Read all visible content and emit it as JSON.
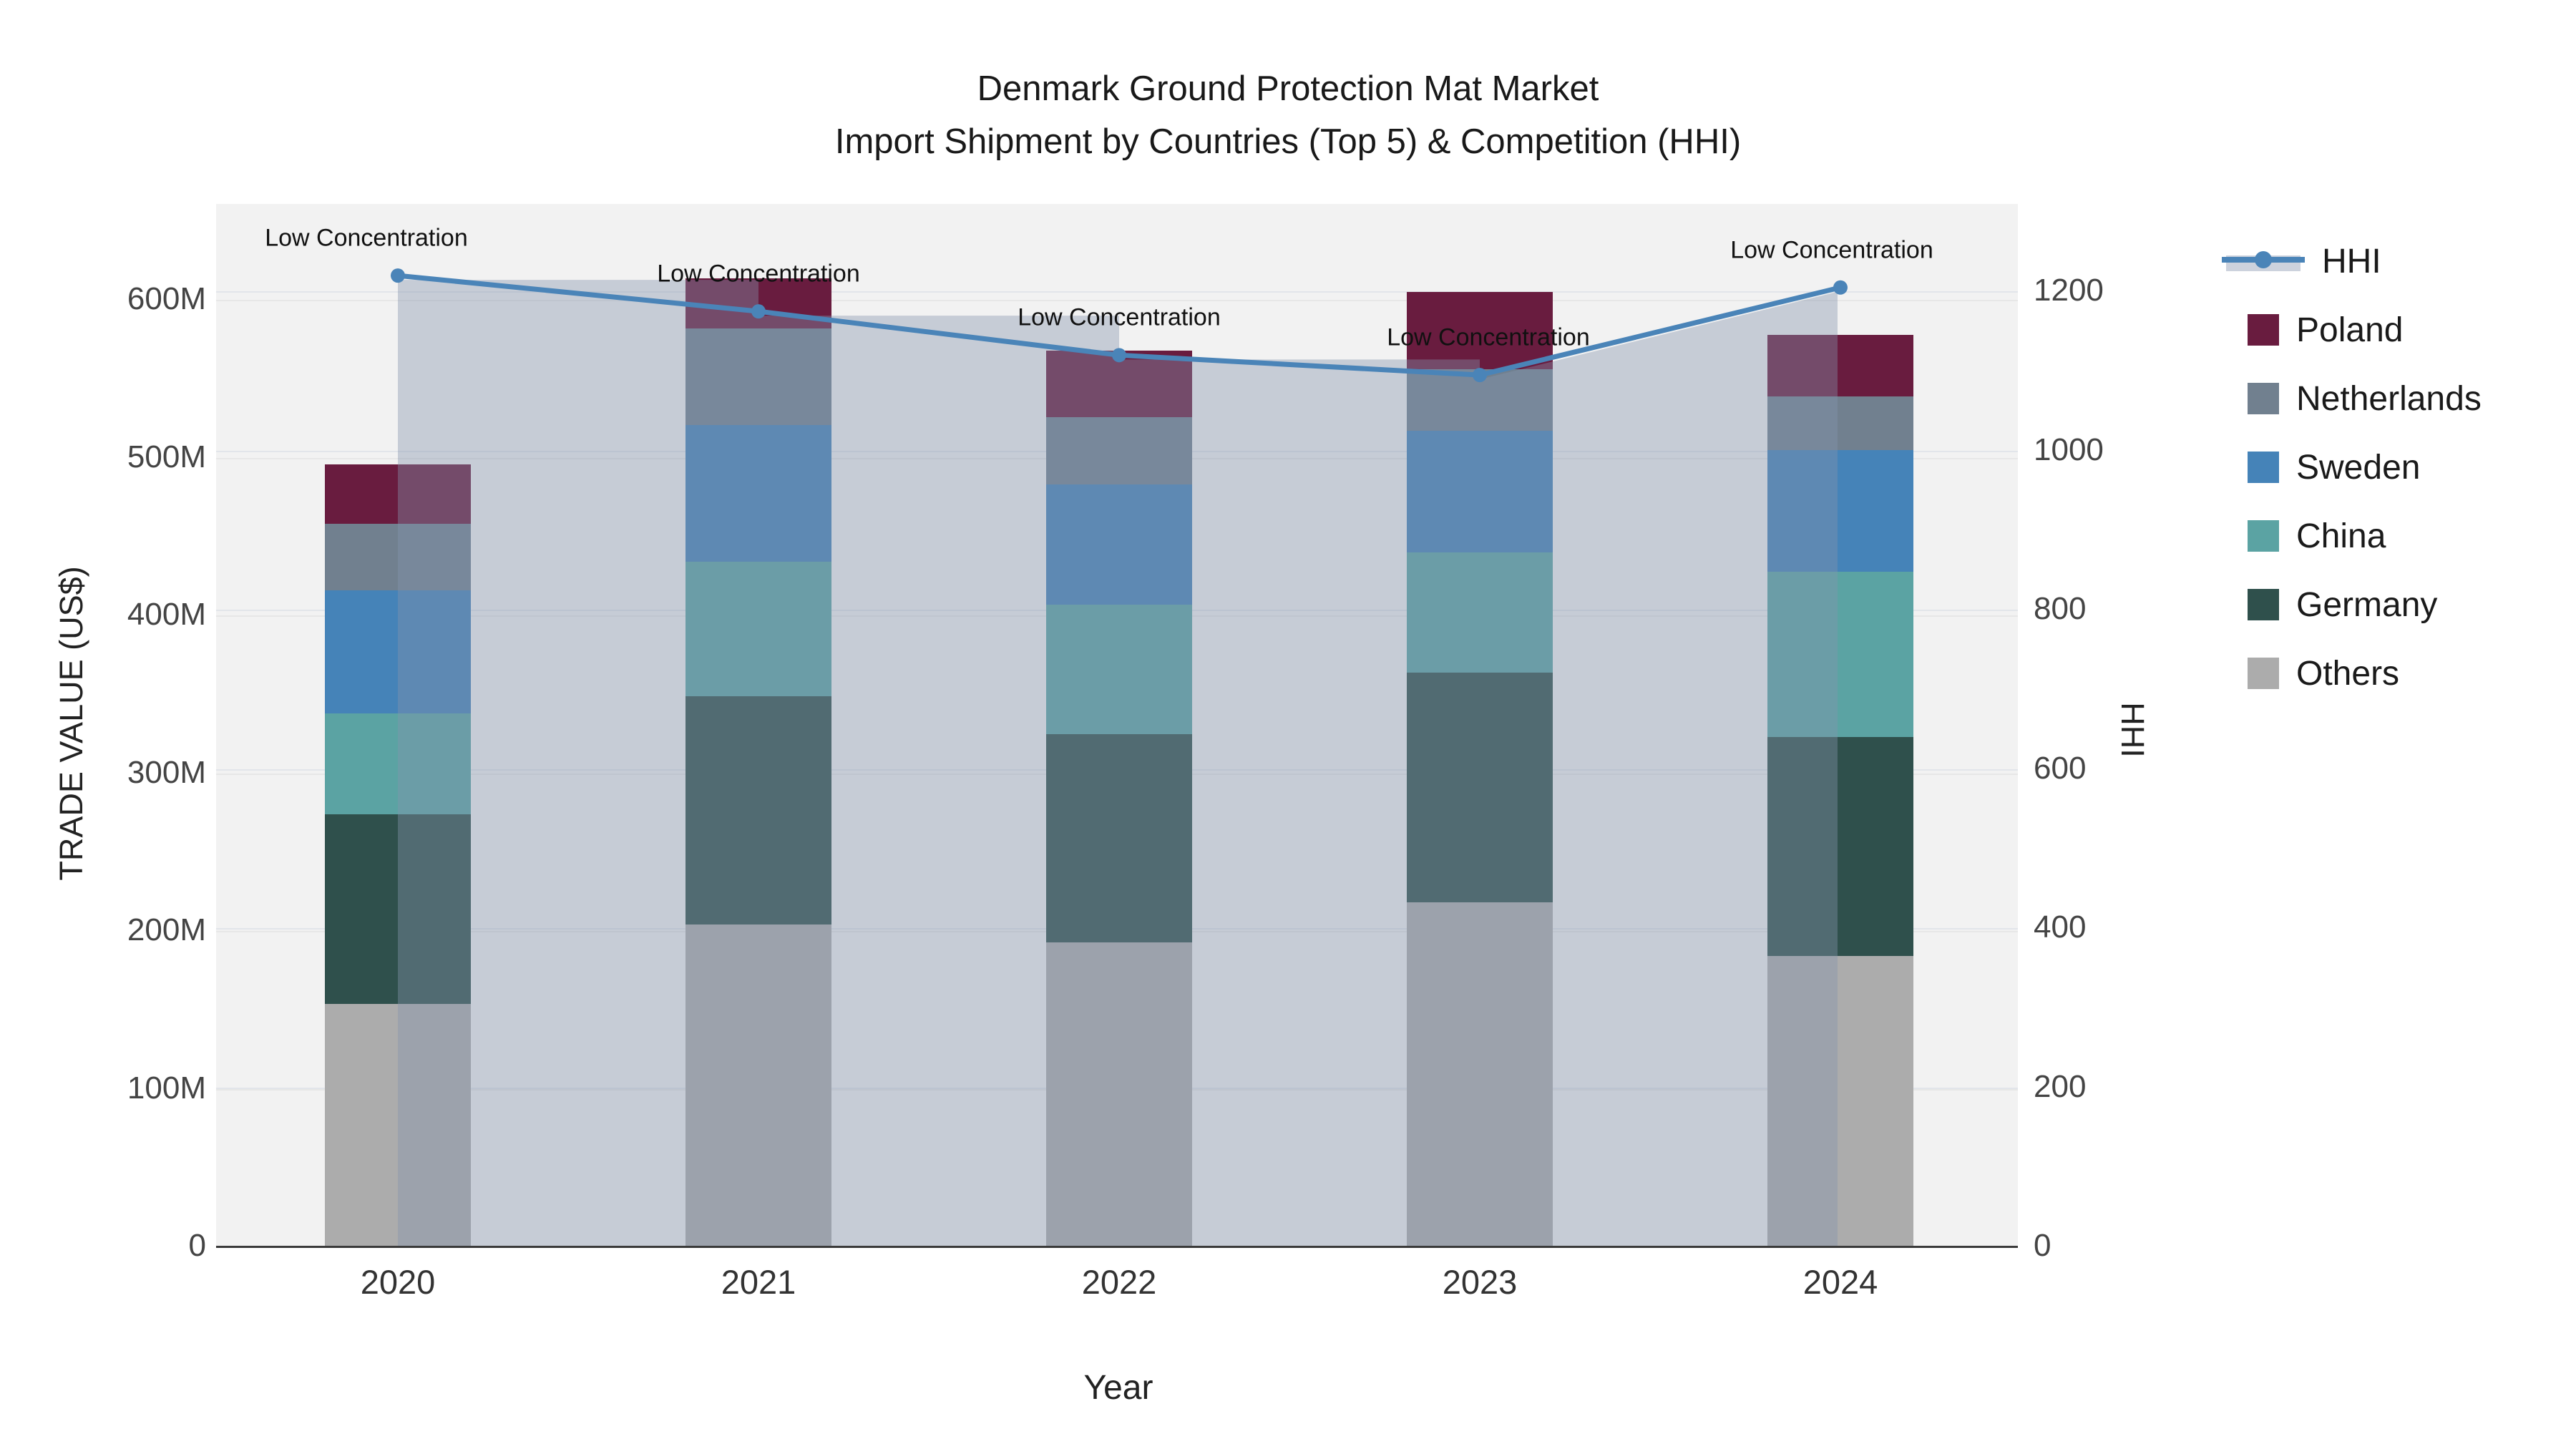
{
  "title": {
    "line1": "Denmark Ground Protection Mat Market",
    "line2": "Import Shipment by Countries (Top 5) & Competition (HHI)"
  },
  "axes": {
    "y_left": {
      "title": "TRADE VALUE (US$)",
      "tick_labels": [
        "0",
        "100M",
        "200M",
        "300M",
        "400M",
        "500M",
        "600M"
      ],
      "tick_values": [
        0,
        100,
        200,
        300,
        400,
        500,
        600
      ]
    },
    "y_right": {
      "title": "HHI",
      "tick_labels": [
        "0",
        "200",
        "400",
        "600",
        "800",
        "1000",
        "1200"
      ],
      "tick_values": [
        0,
        200,
        400,
        600,
        800,
        1000,
        1200
      ]
    },
    "x": {
      "title": "Year",
      "tick_labels": [
        "2020",
        "2021",
        "2022",
        "2023",
        "2024"
      ]
    }
  },
  "legend": {
    "items": [
      {
        "label": "HHI",
        "type": "line",
        "color": "#4a84b8"
      },
      {
        "label": "Poland",
        "type": "swatch",
        "color": "#691c3f"
      },
      {
        "label": "Netherlands",
        "type": "swatch",
        "color": "#71808f"
      },
      {
        "label": "Sweden",
        "type": "swatch",
        "color": "#4583b8"
      },
      {
        "label": "China",
        "type": "swatch",
        "color": "#5ba3a3"
      },
      {
        "label": "Germany",
        "type": "swatch",
        "color": "#2f504c"
      },
      {
        "label": "Others",
        "type": "swatch",
        "color": "#acacac"
      }
    ]
  },
  "chart_data": {
    "type": "bar+line",
    "subtype": "stacked bars (left axis, trade value US$ millions) with HHI step-area and line-markers (right axis)",
    "categories": [
      "2020",
      "2021",
      "2022",
      "2023",
      "2024"
    ],
    "stack_order_bottom_to_top": [
      "Others",
      "Germany",
      "China",
      "Sweden",
      "Netherlands",
      "Poland"
    ],
    "series": [
      {
        "name": "Others",
        "color": "#acacac",
        "values": [
          154,
          204,
          193,
          218,
          184
        ]
      },
      {
        "name": "Germany",
        "color": "#2f504c",
        "values": [
          120,
          145,
          132,
          146,
          139
        ]
      },
      {
        "name": "China",
        "color": "#5ba3a3",
        "values": [
          64,
          85,
          82,
          76,
          105
        ]
      },
      {
        "name": "Sweden",
        "color": "#4583b8",
        "values": [
          78,
          87,
          76,
          77,
          77
        ]
      },
      {
        "name": "Netherlands",
        "color": "#71808f",
        "values": [
          42,
          61,
          43,
          39,
          34
        ]
      },
      {
        "name": "Poland",
        "color": "#691c3f",
        "values": [
          38,
          32,
          42,
          49,
          39
        ]
      }
    ],
    "bar_totals_musd": [
      496,
      614,
      568,
      605,
      578
    ],
    "hhi": {
      "name": "HHI",
      "line_color": "#4a84b8",
      "area_fill": "rgba(133,147,173,0.40)",
      "values": [
        1220,
        1175,
        1120,
        1095,
        1205
      ],
      "annotation_per_point": [
        "Low Concentration",
        "Low Concentration",
        "Low Concentration",
        "Low Concentration",
        "Low Concentration"
      ]
    },
    "xlabel": "Year",
    "ylabel_left": "TRADE VALUE (US$)",
    "ylabel_right": "HHI",
    "ylim_left_musd": [
      0,
      661
    ],
    "ylim_right_hhi": [
      0,
      1310
    ],
    "grid": true,
    "legend_position": "right"
  },
  "annotation_text": "Low Concentration"
}
